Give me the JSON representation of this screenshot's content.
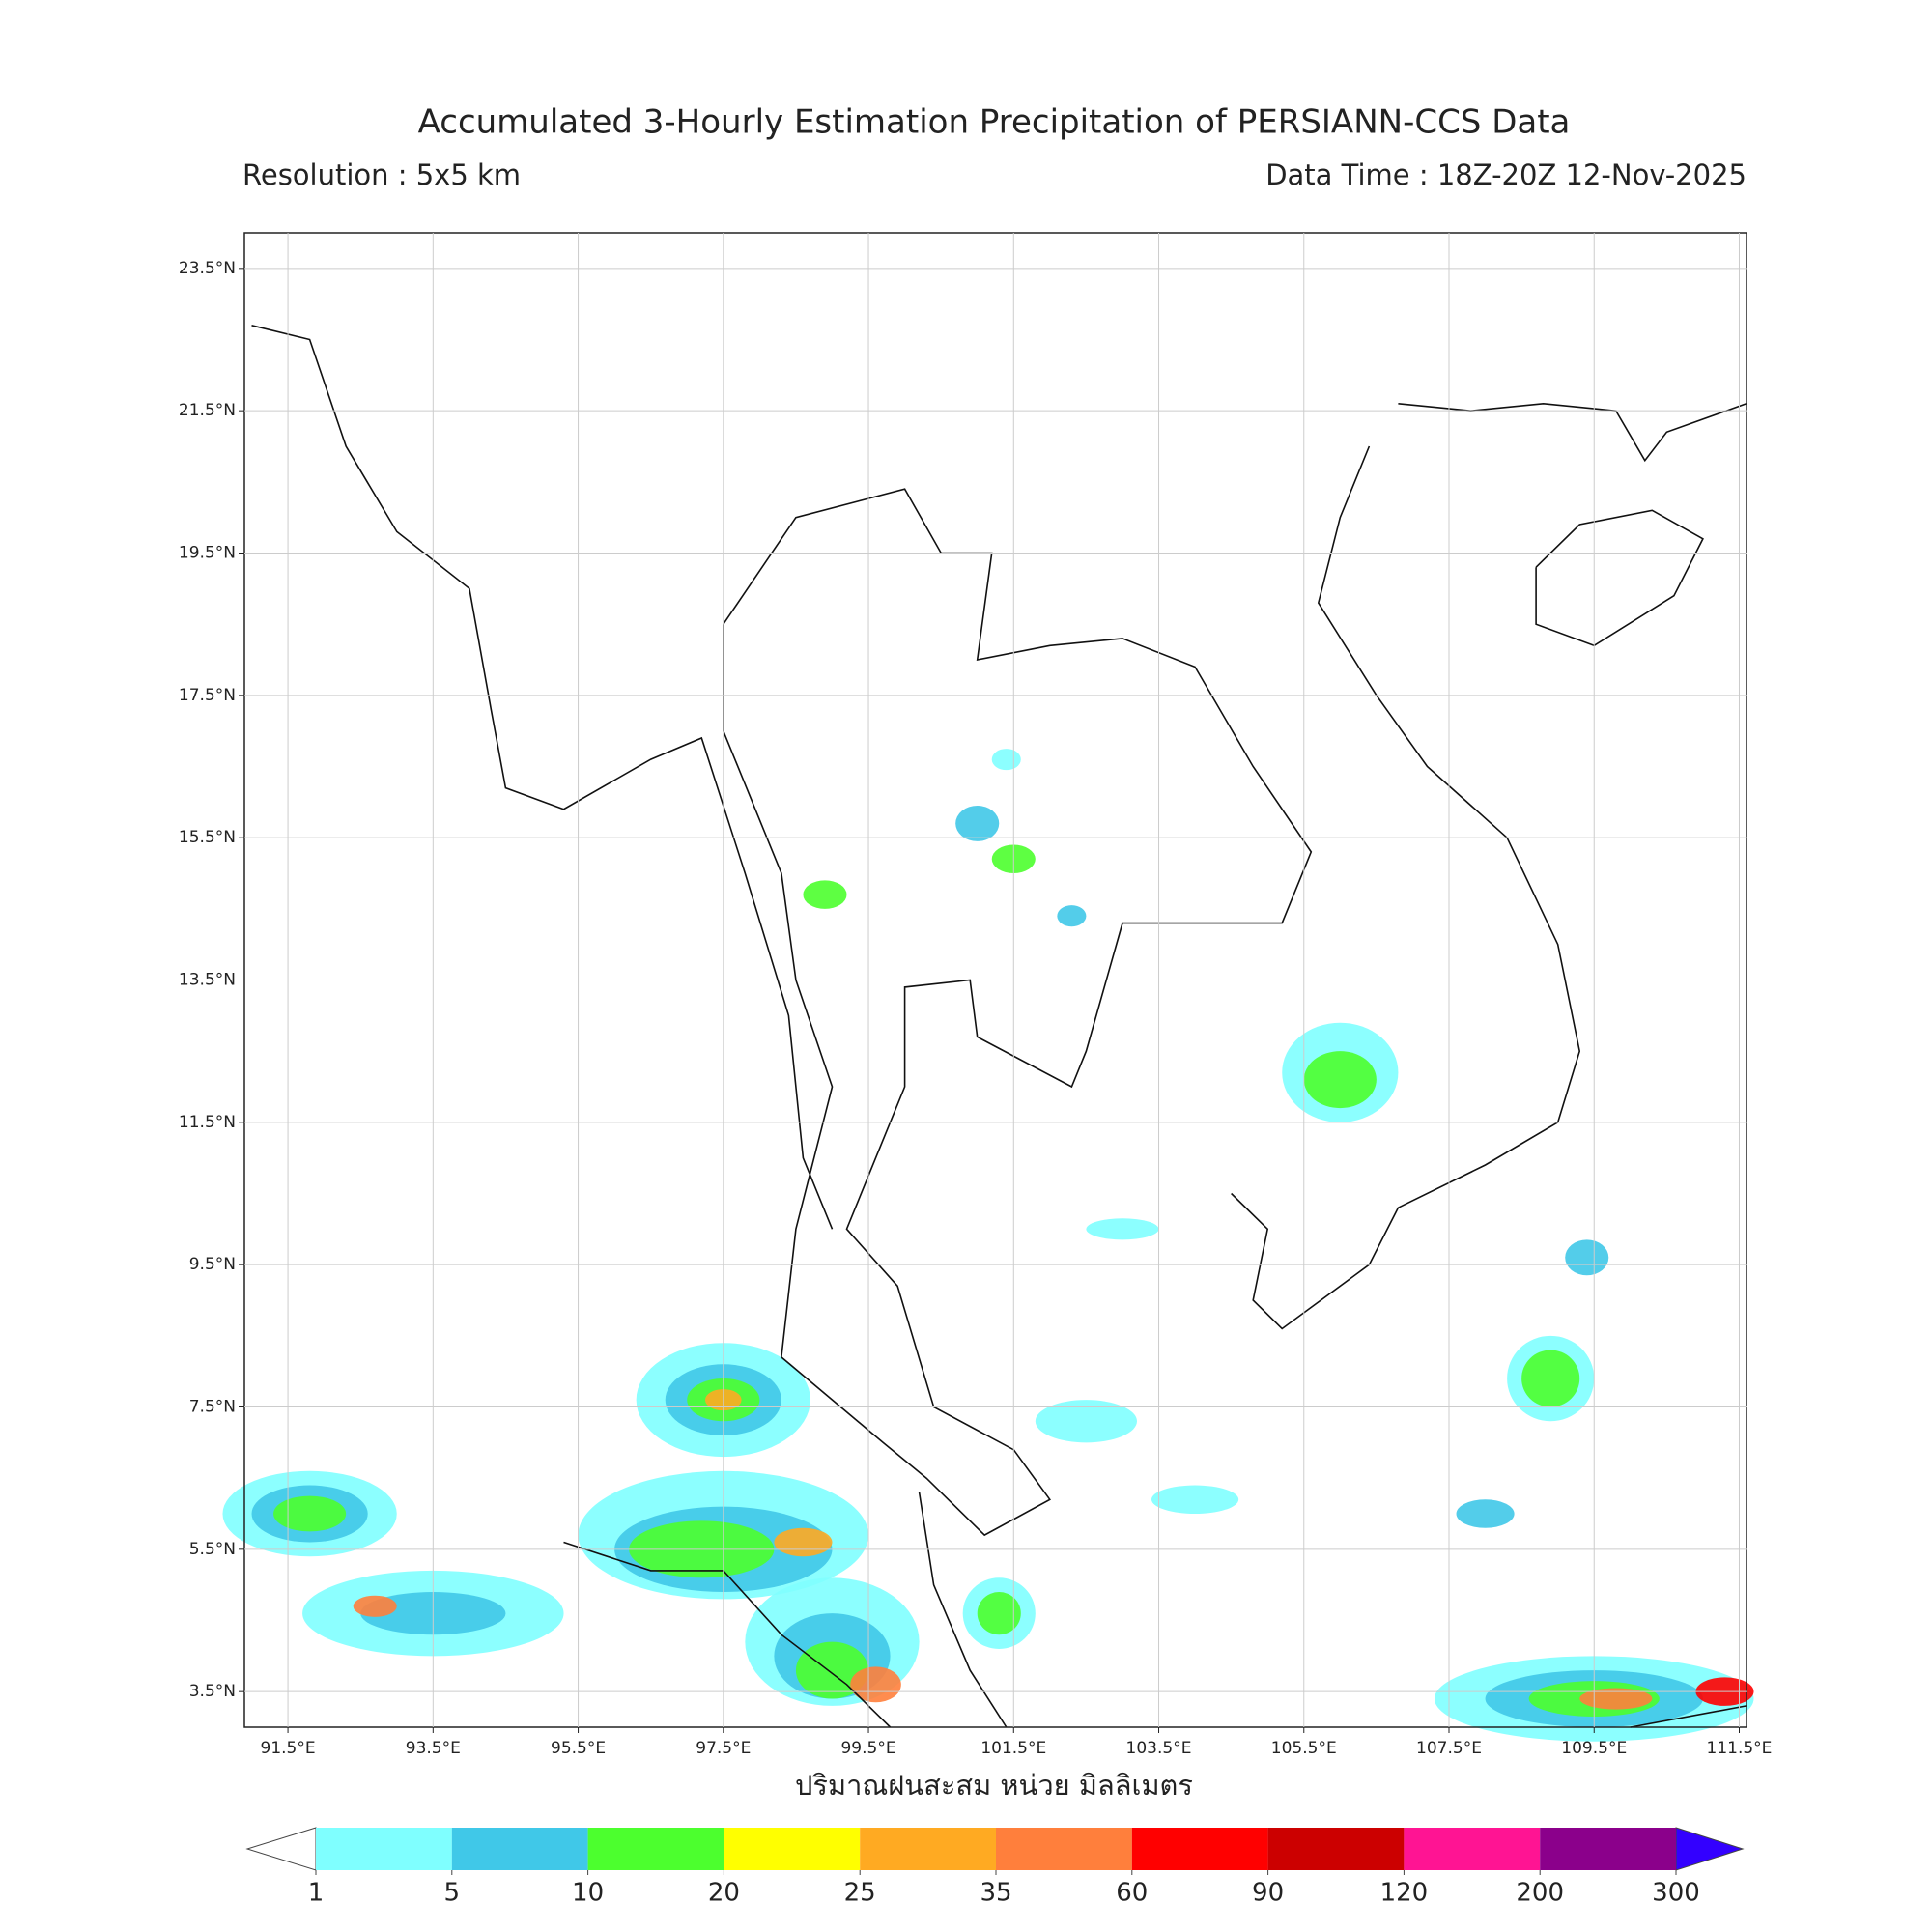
{
  "header": {
    "title": "Accumulated 3-Hourly Estimation Precipitation of PERSIANN-CCS Data",
    "resolution": "Resolution : 5x5 km",
    "data_time": "Data Time : 18Z-20Z 12-Nov-2025"
  },
  "map": {
    "xlim": [
      90.9,
      111.6
    ],
    "ylim": [
      3.0,
      24.0
    ],
    "xticks": [
      {
        "value": 91.5,
        "label": "91.5°E"
      },
      {
        "value": 93.5,
        "label": "93.5°E"
      },
      {
        "value": 95.5,
        "label": "95.5°E"
      },
      {
        "value": 97.5,
        "label": "97.5°E"
      },
      {
        "value": 99.5,
        "label": "99.5°E"
      },
      {
        "value": 101.5,
        "label": "101.5°E"
      },
      {
        "value": 103.5,
        "label": "103.5°E"
      },
      {
        "value": 105.5,
        "label": "105.5°E"
      },
      {
        "value": 107.5,
        "label": "107.5°E"
      },
      {
        "value": 109.5,
        "label": "109.5°E"
      },
      {
        "value": 111.5,
        "label": "111.5°E"
      }
    ],
    "yticks": [
      {
        "value": 23.5,
        "label": "23.5°N"
      },
      {
        "value": 21.5,
        "label": "21.5°N"
      },
      {
        "value": 19.5,
        "label": "19.5°N"
      },
      {
        "value": 17.5,
        "label": "17.5°N"
      },
      {
        "value": 15.5,
        "label": "15.5°N"
      },
      {
        "value": 13.5,
        "label": "13.5°N"
      },
      {
        "value": 11.5,
        "label": "11.5°N"
      },
      {
        "value": 9.5,
        "label": "9.5°N"
      },
      {
        "value": 7.5,
        "label": "7.5°N"
      },
      {
        "value": 5.5,
        "label": "5.5°N"
      },
      {
        "value": 3.5,
        "label": "3.5°N"
      }
    ],
    "xlabel": "ปริมาณฝนสะสม หน่วย มิลลิเมตร",
    "grid": true
  },
  "colorbar": {
    "levels": [
      1,
      5,
      10,
      20,
      25,
      35,
      60,
      90,
      120,
      200,
      300
    ],
    "colors": [
      "#7fffff",
      "#40c8e8",
      "#4cff2e",
      "#ffff00",
      "#ffaa22",
      "#ff7f3c",
      "#ff0000",
      "#cc0000",
      "#ff1493",
      "#8b008b"
    ],
    "under_color": "#ffffff",
    "over_color": "#3300ff"
  }
}
